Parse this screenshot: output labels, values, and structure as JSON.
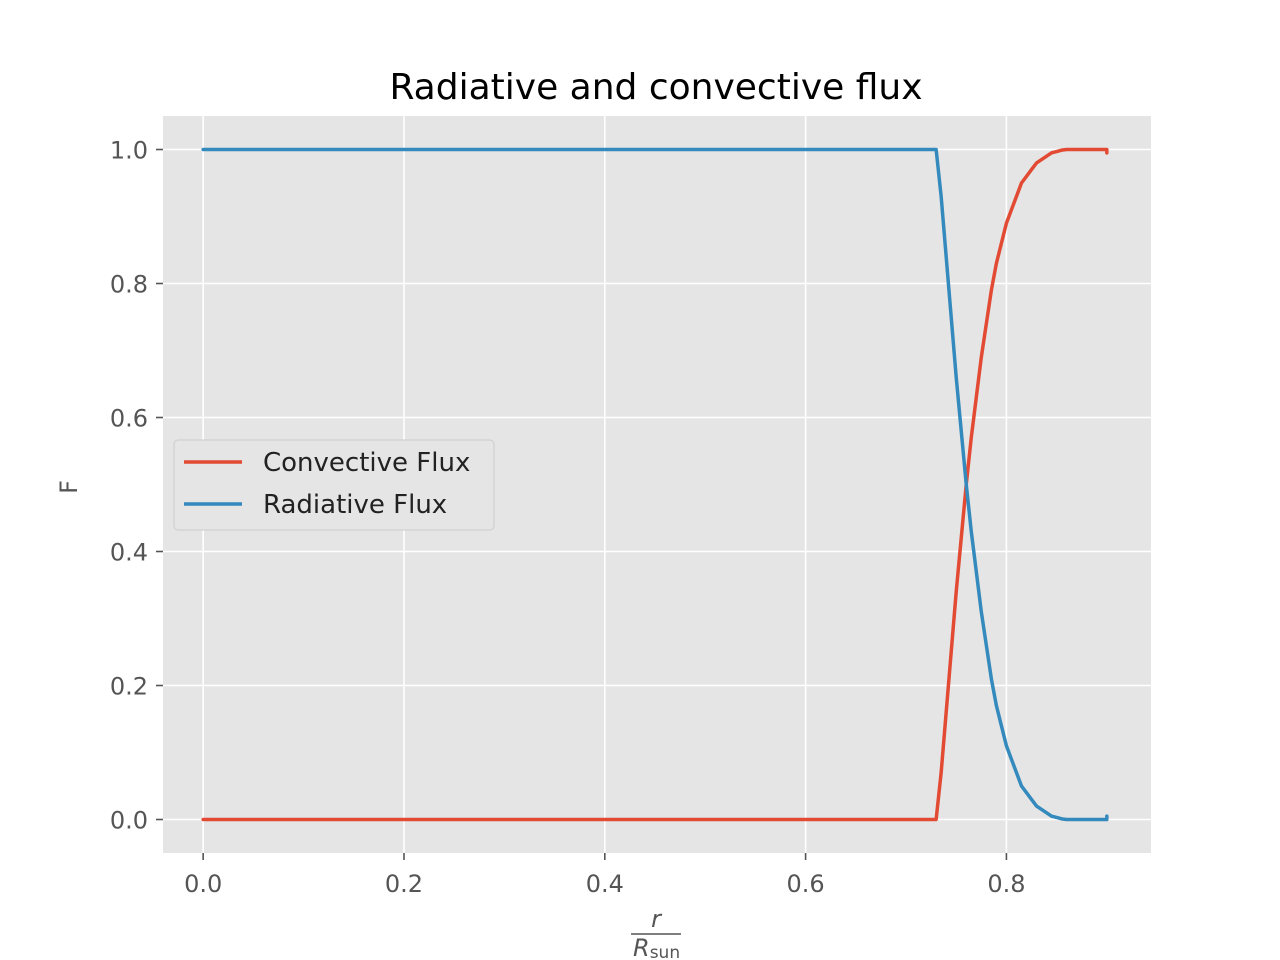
{
  "chart_data": {
    "type": "line",
    "title": "Radiative and convective flux",
    "xlabel": {
      "numerator": "r",
      "denominator_main": "R",
      "denominator_sub": "sun"
    },
    "ylabel": "F",
    "xlim": [
      -0.04,
      0.944
    ],
    "ylim": [
      -0.05,
      1.05
    ],
    "xticks": [
      "0.0",
      "0.2",
      "0.4",
      "0.6",
      "0.8"
    ],
    "yticks": [
      "0.0",
      "0.2",
      "0.4",
      "0.6",
      "0.8",
      "1.0"
    ],
    "grid": true,
    "legend_position": "center-left",
    "series": [
      {
        "name": "Convective Flux",
        "color": "#E24A33",
        "x": [
          0.0,
          0.1,
          0.2,
          0.3,
          0.4,
          0.5,
          0.6,
          0.7,
          0.73,
          0.735,
          0.74,
          0.745,
          0.75,
          0.755,
          0.76,
          0.765,
          0.77,
          0.775,
          0.78,
          0.785,
          0.79,
          0.795,
          0.8,
          0.805,
          0.81,
          0.815,
          0.82,
          0.825,
          0.83,
          0.835,
          0.84,
          0.845,
          0.85,
          0.855,
          0.86,
          0.865,
          0.87,
          0.875,
          0.88,
          0.885,
          0.89,
          0.895,
          0.9,
          0.9
        ],
        "y": [
          0.0,
          0.0,
          0.0,
          0.0,
          0.0,
          0.0,
          0.0,
          0.0,
          0.0,
          0.07,
          0.16,
          0.25,
          0.34,
          0.42,
          0.5,
          0.57,
          0.63,
          0.69,
          0.74,
          0.79,
          0.83,
          0.86,
          0.89,
          0.91,
          0.93,
          0.95,
          0.96,
          0.97,
          0.98,
          0.985,
          0.99,
          0.995,
          0.997,
          0.999,
          1.0,
          1.0,
          1.0,
          1.0,
          1.0,
          1.0,
          1.0,
          1.0,
          1.0,
          0.995
        ]
      },
      {
        "name": "Radiative Flux",
        "color": "#348ABD",
        "x": [
          0.0,
          0.1,
          0.2,
          0.3,
          0.4,
          0.5,
          0.6,
          0.7,
          0.73,
          0.735,
          0.74,
          0.745,
          0.75,
          0.755,
          0.76,
          0.765,
          0.77,
          0.775,
          0.78,
          0.785,
          0.79,
          0.795,
          0.8,
          0.805,
          0.81,
          0.815,
          0.82,
          0.825,
          0.83,
          0.835,
          0.84,
          0.845,
          0.85,
          0.855,
          0.86,
          0.865,
          0.87,
          0.875,
          0.88,
          0.885,
          0.89,
          0.895,
          0.9,
          0.9
        ],
        "y": [
          1.0,
          1.0,
          1.0,
          1.0,
          1.0,
          1.0,
          1.0,
          1.0,
          1.0,
          0.93,
          0.84,
          0.75,
          0.66,
          0.58,
          0.5,
          0.43,
          0.37,
          0.31,
          0.26,
          0.21,
          0.17,
          0.14,
          0.11,
          0.09,
          0.07,
          0.05,
          0.04,
          0.03,
          0.02,
          0.015,
          0.01,
          0.005,
          0.003,
          0.001,
          0.0,
          0.0,
          0.0,
          0.0,
          0.0,
          0.0,
          0.0,
          0.0,
          0.0,
          0.005
        ]
      }
    ]
  }
}
